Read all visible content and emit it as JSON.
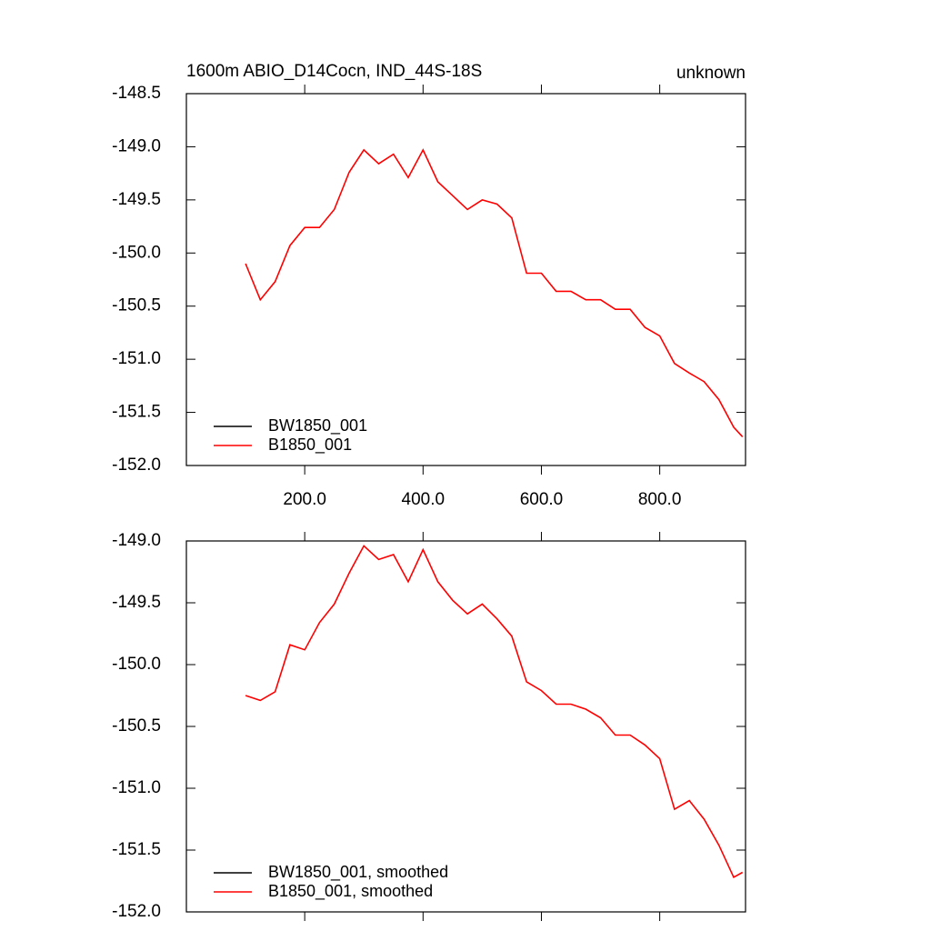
{
  "chart_data": [
    {
      "type": "line",
      "title": "1600m ABIO_D14Cocn, IND_44S-18S",
      "subtitle": "unknown",
      "x": [
        100,
        125,
        150,
        175,
        200,
        225,
        250,
        275,
        300,
        325,
        350,
        375,
        400,
        425,
        450,
        475,
        500,
        525,
        550,
        575,
        600,
        625,
        650,
        675,
        700,
        725,
        750,
        775,
        800,
        825,
        850,
        875,
        900,
        925,
        940
      ],
      "series": [
        {
          "name": "BW1850_001",
          "color": "#000000",
          "values": [
            null,
            null,
            null,
            null,
            null,
            null,
            null,
            null,
            null,
            null,
            null,
            null,
            null,
            null,
            null,
            null,
            null,
            null,
            null,
            null,
            null,
            null,
            null,
            null,
            null,
            null,
            null,
            null,
            null,
            null,
            null,
            null,
            null,
            null,
            null
          ]
        },
        {
          "name": "B1850_001",
          "color": "#ff0000",
          "values": [
            -150.1,
            -150.44,
            -150.27,
            -149.93,
            -149.76,
            -149.76,
            -149.59,
            -149.24,
            -149.03,
            -149.16,
            -149.07,
            -149.29,
            -149.03,
            -149.33,
            -149.46,
            -149.59,
            -149.5,
            -149.54,
            -149.67,
            -150.19,
            -150.19,
            -150.36,
            -150.36,
            -150.44,
            -150.44,
            -150.53,
            -150.53,
            -150.7,
            -150.78,
            -151.04,
            -151.13,
            -151.21,
            -151.38,
            -151.64,
            -151.73
          ]
        }
      ],
      "xlim": [
        0,
        945
      ],
      "xticks": [
        {
          "value": 200,
          "label": "200.0"
        },
        {
          "value": 400,
          "label": "400.0"
        },
        {
          "value": 600,
          "label": "600.0"
        },
        {
          "value": 800,
          "label": "800.0"
        }
      ],
      "ylim": [
        -152,
        -148.5
      ],
      "yticks": [
        {
          "value": -152,
          "label": "-152.0"
        },
        -151.5,
        {
          "value": -151,
          "label": "-151.0"
        },
        -150.5,
        {
          "value": -150,
          "label": "-150.0"
        },
        -149.5,
        {
          "value": -149,
          "label": "-149.0"
        },
        -148.5
      ],
      "grid": false,
      "legend": "lower left"
    },
    {
      "type": "line",
      "x": [
        100,
        125,
        150,
        175,
        200,
        225,
        250,
        275,
        300,
        325,
        350,
        375,
        400,
        425,
        450,
        475,
        500,
        525,
        550,
        575,
        600,
        625,
        650,
        675,
        700,
        725,
        750,
        775,
        800,
        825,
        850,
        875,
        900,
        925,
        940
      ],
      "series": [
        {
          "name": "BW1850_001, smoothed",
          "color": "#000000",
          "values": [
            null,
            null,
            null,
            null,
            null,
            null,
            null,
            null,
            null,
            null,
            null,
            null,
            null,
            null,
            null,
            null,
            null,
            null,
            null,
            null,
            null,
            null,
            null,
            null,
            null,
            null,
            null,
            null,
            null,
            null,
            null,
            null,
            null,
            null,
            null
          ]
        },
        {
          "name": "B1850_001, smoothed",
          "color": "#ff0000",
          "values": [
            -150.25,
            -150.29,
            -150.22,
            -149.84,
            -149.88,
            -149.66,
            -149.51,
            -149.26,
            -149.04,
            -149.15,
            -149.11,
            -149.33,
            -149.07,
            -149.33,
            -149.48,
            -149.59,
            -149.51,
            -149.63,
            -149.77,
            -150.14,
            -150.21,
            -150.32,
            -150.32,
            -150.36,
            -150.43,
            -150.57,
            -150.57,
            -150.65,
            -150.76,
            -151.17,
            -151.1,
            -151.25,
            -151.46,
            -151.72,
            -151.68
          ]
        }
      ],
      "xlim": [
        0,
        945
      ],
      "xticks": [
        200,
        400,
        600,
        800
      ],
      "x_tick_labels": false,
      "ylim": [
        -152,
        -149
      ],
      "yticks": [
        {
          "value": -152,
          "label": "-152.0"
        },
        -151.5,
        {
          "value": -151,
          "label": "-151.0"
        },
        -150.5,
        {
          "value": -150,
          "label": "-150.0"
        },
        -149.5,
        {
          "value": -149,
          "label": "-149.0"
        }
      ],
      "grid": false,
      "legend": "lower left"
    }
  ]
}
